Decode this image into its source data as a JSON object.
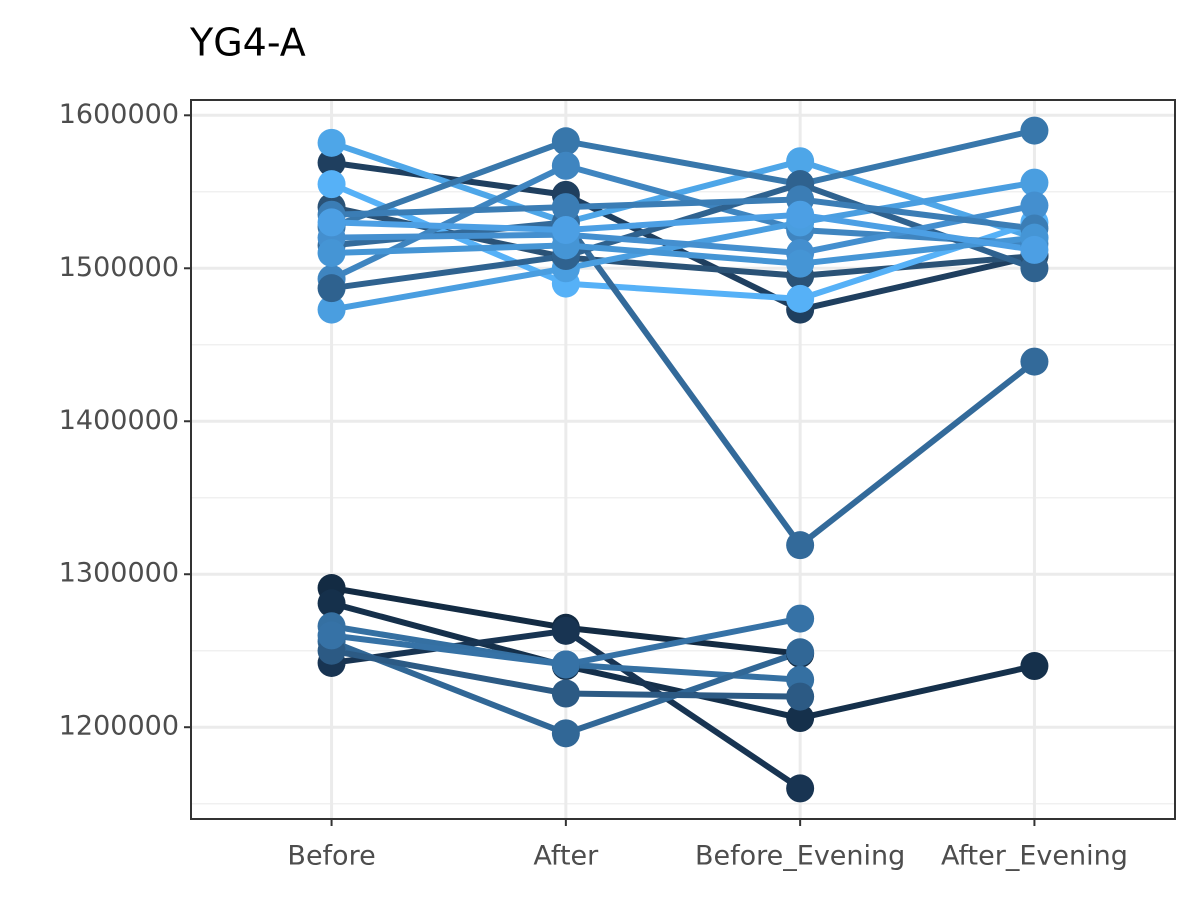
{
  "chart_data": {
    "type": "line",
    "title": "YG4-A",
    "categories": [
      "Before",
      "After",
      "Before_Evening",
      "After_Evening"
    ],
    "ylim": [
      1140000,
      1610000
    ],
    "yticks": [
      1200000,
      1300000,
      1400000,
      1500000,
      1600000
    ],
    "grid": true,
    "series": [
      {
        "color": "#1f3f5f",
        "values": [
          1569000,
          1548000,
          1473000,
          1508000
        ]
      },
      {
        "color": "#2a5276",
        "values": [
          1540000,
          1507000,
          1495000,
          1508000
        ]
      },
      {
        "color": "#4ea6e8",
        "values": [
          1582000,
          1530000,
          1570000,
          1520000
        ]
      },
      {
        "color": "#56b1f7",
        "values": [
          1555000,
          1490000,
          1480000,
          1530000
        ]
      },
      {
        "color": "#3877ab",
        "values": [
          1527000,
          1583000,
          1555000,
          1590000
        ]
      },
      {
        "color": "#336a9a",
        "values": [
          1515000,
          1530000,
          1319000,
          1439000
        ]
      },
      {
        "color": "#3f85c0",
        "values": [
          1493000,
          1567000,
          1525000,
          1516000
        ]
      },
      {
        "color": "#4a9ee0",
        "values": [
          1473000,
          1500000,
          1530000,
          1556000
        ]
      },
      {
        "color": "#2f628f",
        "values": [
          1487000,
          1508000,
          1555000,
          1500000
        ]
      },
      {
        "color": "#448fcf",
        "values": [
          1520000,
          1522000,
          1510000,
          1541000
        ]
      },
      {
        "color": "#3b7db5",
        "values": [
          1535000,
          1540000,
          1545000,
          1526000
        ]
      },
      {
        "color": "#4595d5",
        "values": [
          1510000,
          1515000,
          1503000,
          1520000
        ]
      },
      {
        "color": "#4c9fe4",
        "values": [
          1530000,
          1525000,
          1535000,
          1512000
        ]
      },
      {
        "color": "#132b43",
        "values": [
          1291000,
          1265000,
          1248000,
          null
        ]
      },
      {
        "color": "#15304b",
        "values": [
          1281000,
          1240000,
          1206000,
          1240000
        ]
      },
      {
        "color": "#183452",
        "values": [
          1242000,
          1263000,
          1160000,
          null
        ]
      },
      {
        "color": "#3570a2",
        "values": [
          1266000,
          1241000,
          1231000,
          null
        ]
      },
      {
        "color": "#316796",
        "values": [
          1256000,
          1196000,
          1249000,
          null
        ]
      },
      {
        "color": "#2c5a84",
        "values": [
          1250000,
          1222000,
          1220000,
          null
        ]
      },
      {
        "color": "#3672a6",
        "values": [
          1260000,
          1241000,
          1271000,
          null
        ]
      }
    ]
  }
}
